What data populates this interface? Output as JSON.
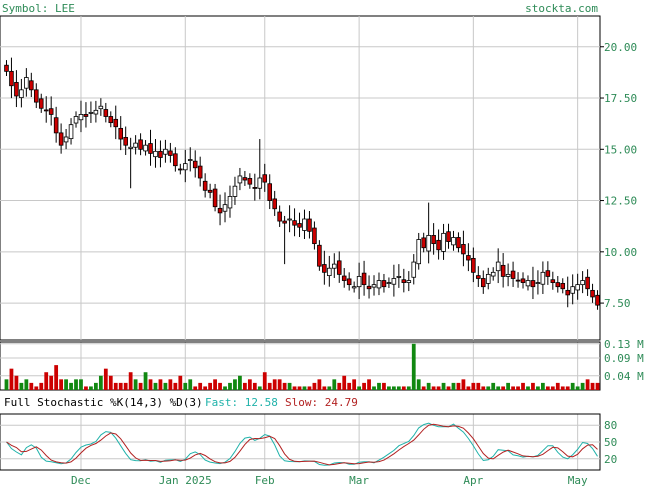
{
  "header": {
    "symbol_label": "Symbol: LEE",
    "brand": "stockta.com"
  },
  "colors": {
    "up": "#ffffff",
    "down": "#cc0000",
    "vol_up": "#118811",
    "vol_down": "#cc0000",
    "grid": "#c8c8c8",
    "text": "#2e8b57",
    "fast": "#20b2aa",
    "slow": "#b22222",
    "frame": "#000000"
  },
  "chart_data": [
    {
      "type": "candlestick",
      "title": "",
      "ylim": [
        5.7,
        21.5
      ],
      "y_ticks": [
        7.5,
        10,
        12.5,
        15,
        17.5,
        20
      ],
      "y_tick_labels": [
        "7.50",
        "10.00",
        "12.50",
        "15.00",
        "17.50",
        "20.00"
      ],
      "x_tick_labels": [
        "Dec",
        "Jan 2025",
        "Feb",
        "Mar",
        "Apr",
        "May"
      ],
      "x_tick_index": [
        15,
        36,
        52,
        71,
        94,
        115
      ],
      "grid": true,
      "closes": [
        18.8,
        18.1,
        17.6,
        17.9,
        18.5,
        17.9,
        17.3,
        17.0,
        16.9,
        16.7,
        15.8,
        15.2,
        15.6,
        16.2,
        16.6,
        16.7,
        16.6,
        16.8,
        16.9,
        17.1,
        16.6,
        16.3,
        16.1,
        15.5,
        15.2,
        15.1,
        15.3,
        15.0,
        15.2,
        14.8,
        14.9,
        14.6,
        15.0,
        14.7,
        14.2,
        14.0,
        14.3,
        14.5,
        14.1,
        13.6,
        13.0,
        12.9,
        12.2,
        11.9,
        12.3,
        12.7,
        13.2,
        13.7,
        13.5,
        13.3,
        13.1,
        13.6,
        13.4,
        12.5,
        12.1,
        11.5,
        11.4,
        11.6,
        11.3,
        11.2,
        11.6,
        11.0,
        10.4,
        9.3,
        9.0,
        9.2,
        9.4,
        8.9,
        8.6,
        8.4,
        8.3,
        8.8,
        8.4,
        8.2,
        8.4,
        8.6,
        8.3,
        8.5,
        8.7,
        8.8,
        8.5,
        8.6,
        9.5,
        10.6,
        10.2,
        10.8,
        10.4,
        10.1,
        10.9,
        10.5,
        10.7,
        10.2,
        9.9,
        9.6,
        9.0,
        8.7,
        8.3,
        8.9,
        9.0,
        9.5,
        8.8,
        8.9,
        8.7,
        8.6,
        8.5,
        8.6,
        8.3,
        8.5,
        9.0,
        8.8,
        8.5,
        8.3,
        8.2,
        7.9,
        8.3,
        8.4,
        8.6,
        8.2,
        7.8,
        7.4
      ],
      "volume_labels": [
        "0.13 M",
        "0.09 M",
        "0.04 M"
      ],
      "volume_ticks": [
        0.13,
        0.09,
        0.04
      ],
      "volume_max": 0.135,
      "volumes": [
        0.03,
        0.06,
        0.04,
        0.02,
        0.03,
        0.02,
        0.01,
        0.02,
        0.05,
        0.04,
        0.07,
        0.03,
        0.03,
        0.02,
        0.03,
        0.03,
        0.01,
        0.01,
        0.02,
        0.04,
        0.06,
        0.04,
        0.02,
        0.02,
        0.02,
        0.05,
        0.03,
        0.02,
        0.05,
        0.03,
        0.02,
        0.03,
        0.02,
        0.03,
        0.02,
        0.04,
        0.02,
        0.03,
        0.01,
        0.02,
        0.01,
        0.02,
        0.03,
        0.02,
        0.01,
        0.02,
        0.03,
        0.04,
        0.02,
        0.03,
        0.02,
        0.01,
        0.05,
        0.02,
        0.03,
        0.03,
        0.02,
        0.02,
        0.01,
        0.01,
        0.01,
        0.01,
        0.02,
        0.03,
        0.01,
        0.01,
        0.03,
        0.02,
        0.04,
        0.02,
        0.03,
        0.01,
        0.02,
        0.03,
        0.01,
        0.02,
        0.02,
        0.01,
        0.01,
        0.01,
        0.01,
        0.01,
        0.13,
        0.03,
        0.01,
        0.02,
        0.01,
        0.01,
        0.02,
        0.01,
        0.02,
        0.02,
        0.03,
        0.01,
        0.02,
        0.02,
        0.01,
        0.01,
        0.02,
        0.01,
        0.01,
        0.02,
        0.01,
        0.01,
        0.02,
        0.01,
        0.02,
        0.01,
        0.02,
        0.01,
        0.01,
        0.02,
        0.01,
        0.01,
        0.02,
        0.01,
        0.02,
        0.03,
        0.02,
        0.02
      ],
      "stochastic": {
        "label": "Full Stochastic %K(14,3) %D(3)",
        "fast_label": "Fast: 12.58",
        "slow_label": "Slow: 24.79",
        "y_ticks": [
          80,
          50,
          20
        ],
        "y_tick_labels": [
          "80",
          "50",
          "20"
        ],
        "ylim": [
          0,
          100
        ]
      }
    }
  ]
}
